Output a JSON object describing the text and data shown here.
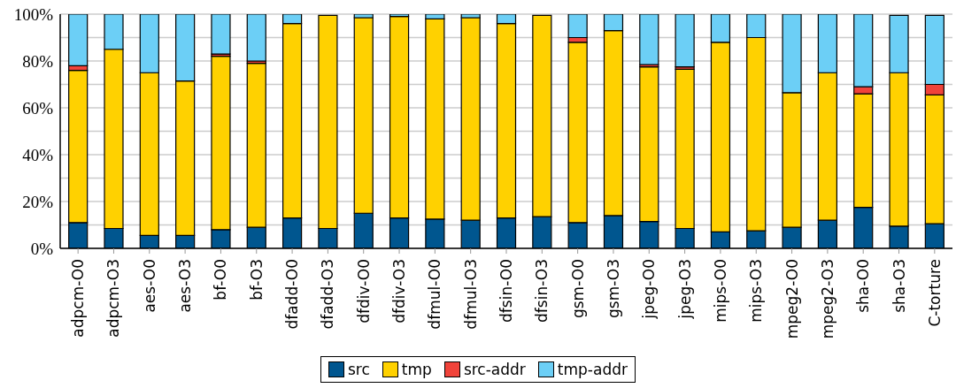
{
  "chart_data": {
    "type": "bar",
    "stacked": true,
    "categories": [
      "adpcm-O0",
      "adpcm-O3",
      "aes-O0",
      "aes-O3",
      "bf-O0",
      "bf-O3",
      "dfadd-O0",
      "dfadd-O3",
      "dfdiv-O0",
      "dfdiv-O3",
      "dfmul-O0",
      "dfmul-O3",
      "dfsin-O0",
      "dfsin-O3",
      "gsm-O0",
      "gsm-O3",
      "jpeg-O0",
      "jpeg-O3",
      "mips-O0",
      "mips-O3",
      "mpeg2-O0",
      "mpeg2-O3",
      "sha-O0",
      "sha-O3",
      "C-torture"
    ],
    "series": [
      {
        "name": "src",
        "color": "#00568f",
        "values": [
          11,
          8.5,
          5.5,
          5.5,
          8,
          9,
          13,
          8.5,
          15,
          13,
          12.5,
          12,
          13,
          13.5,
          11,
          14,
          11.5,
          8.5,
          7,
          7.5,
          9,
          12,
          17.5,
          9.5,
          10.5
        ]
      },
      {
        "name": "tmp",
        "color": "#ffd100",
        "values": [
          65,
          76.5,
          69.5,
          66,
          74,
          70,
          83,
          91,
          83.5,
          86,
          85.5,
          86.5,
          83,
          86,
          77,
          79,
          66,
          68,
          81,
          82.5,
          57.5,
          63,
          48.5,
          65.5,
          55
        ]
      },
      {
        "name": "src-addr",
        "color": "#f0433a",
        "values": [
          2,
          0,
          0,
          0,
          1,
          1,
          0,
          null,
          0,
          0,
          0,
          0,
          0,
          null,
          2,
          0,
          1,
          1,
          0,
          0,
          0,
          0,
          3,
          null,
          4.5
        ]
      },
      {
        "name": "tmp-addr",
        "color": "#6ccff6",
        "values": [
          22,
          15,
          25,
          28.5,
          17,
          20,
          4,
          0,
          1.5,
          1,
          2,
          1.5,
          4,
          0,
          10,
          7,
          21.5,
          22.5,
          12,
          10,
          33.5,
          25,
          31,
          24.5,
          29.5
        ]
      }
    ],
    "ylim": [
      0,
      100
    ],
    "yticks": [
      {
        "value": 0,
        "label": "0%"
      },
      {
        "value": 10,
        "label": null
      },
      {
        "value": 20,
        "label": "20%"
      },
      {
        "value": 30,
        "label": null
      },
      {
        "value": 40,
        "label": "40%"
      },
      {
        "value": 50,
        "label": null
      },
      {
        "value": 60,
        "label": "60%"
      },
      {
        "value": 70,
        "label": null
      },
      {
        "value": 80,
        "label": "80%"
      },
      {
        "value": 90,
        "label": null
      },
      {
        "value": 100,
        "label": "100%"
      }
    ],
    "grid": "y",
    "legend": "bottom"
  }
}
